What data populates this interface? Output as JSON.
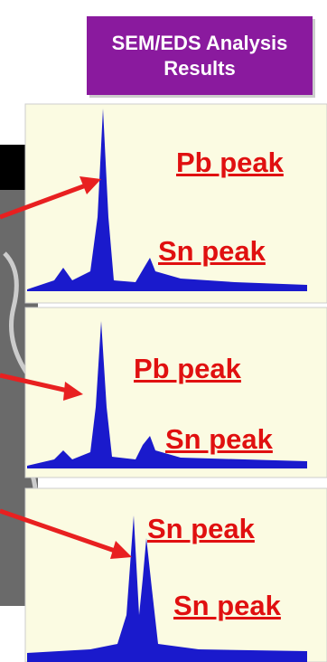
{
  "header": {
    "title": "SEM/EDS Analysis Results"
  },
  "spectra": [
    {
      "labels": [
        "Pb peak",
        "Sn peak"
      ]
    },
    {
      "labels": [
        "Pb peak",
        "Sn peak"
      ]
    },
    {
      "labels": [
        "Sn peak",
        "Sn peak"
      ]
    }
  ]
}
